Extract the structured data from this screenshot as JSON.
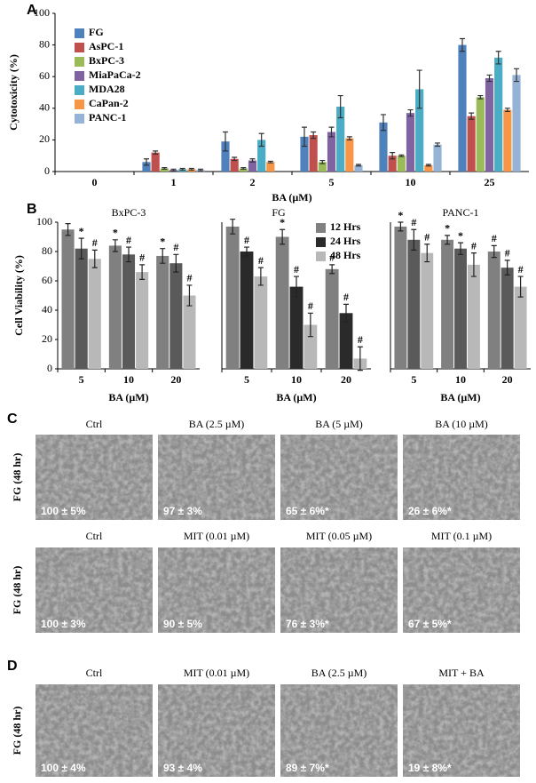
{
  "panel_labels": [
    "A",
    "B",
    "C",
    "D"
  ],
  "chart_data": [
    {
      "type": "bar",
      "categories": [
        "0",
        "1",
        "2",
        "5",
        "10",
        "25"
      ],
      "x_label": "BA (µM)",
      "y_label": "Cytotoxicity (%)",
      "ylim": [
        0,
        100
      ],
      "yticks": [
        0,
        20,
        40,
        60,
        80,
        100
      ],
      "legend": "upper-left",
      "series": [
        {
          "name": "FG",
          "color": "#4f81bd",
          "values": [
            0,
            6,
            19,
            22,
            31,
            80
          ],
          "errors": [
            0,
            2,
            6,
            6,
            5,
            4
          ]
        },
        {
          "name": "AsPC-1",
          "color": "#c0504d",
          "values": [
            0,
            12,
            8,
            23,
            10,
            35
          ],
          "errors": [
            0,
            1,
            1,
            2,
            2,
            2
          ]
        },
        {
          "name": "BxPC-3",
          "color": "#9bbb59",
          "values": [
            0,
            2,
            2,
            6,
            10,
            47
          ],
          "errors": [
            0,
            0.5,
            0.5,
            1,
            0.5,
            1
          ]
        },
        {
          "name": "MiaPaCa-2",
          "color": "#8064a2",
          "values": [
            0,
            1,
            7,
            25,
            37,
            59
          ],
          "errors": [
            0,
            0.5,
            1,
            3,
            2,
            2
          ]
        },
        {
          "name": "MDA28",
          "color": "#4bacc6",
          "values": [
            0,
            1.5,
            20,
            41,
            52,
            72
          ],
          "errors": [
            0,
            0.5,
            4,
            7,
            12,
            4
          ]
        },
        {
          "name": "CaPan-2",
          "color": "#f79646",
          "values": [
            0,
            1.5,
            6,
            21,
            4,
            39
          ],
          "errors": [
            0,
            0.5,
            0.5,
            1,
            0.5,
            1
          ]
        },
        {
          "name": "PANC-1",
          "color": "#95b3d7",
          "values": [
            0,
            1,
            0,
            4,
            17,
            61
          ],
          "errors": [
            0,
            0.5,
            0,
            0.5,
            1,
            4
          ]
        }
      ]
    },
    {
      "type": "bar",
      "title": "BxPC-3",
      "categories": [
        "5",
        "10",
        "20"
      ],
      "x_label": "BA (µM)",
      "y_label": "Cell Viability (%)",
      "ylim": [
        0,
        100
      ],
      "yticks": [
        0,
        20,
        40,
        60,
        80,
        100
      ],
      "series": [
        {
          "color": "#808080",
          "values": [
            95,
            84,
            77
          ],
          "errors": [
            4,
            4,
            5
          ],
          "significance": [
            null,
            "*",
            "*"
          ]
        },
        {
          "color": "#5a5a5a",
          "values": [
            82,
            78,
            72
          ],
          "errors": [
            7,
            5,
            6
          ],
          "significance": [
            "*",
            "#",
            "#"
          ]
        },
        {
          "color": "#b8b8b8",
          "values": [
            75,
            66,
            50
          ],
          "errors": [
            6,
            5,
            7
          ],
          "significance": [
            "#",
            "#",
            "#"
          ]
        }
      ]
    },
    {
      "type": "bar",
      "title": "FG",
      "categories": [
        "5",
        "10",
        "20"
      ],
      "x_label": "BA (µM)",
      "ylim": [
        0,
        100
      ],
      "legend": "upper-right",
      "series": [
        {
          "name": "12 Hrs",
          "color": "#808080",
          "values": [
            97,
            90,
            68
          ],
          "errors": [
            5,
            5,
            3
          ],
          "significance": [
            null,
            "*",
            "#"
          ]
        },
        {
          "name": "24 Hrs",
          "color": "#2a2a2a",
          "values": [
            80,
            56,
            38
          ],
          "errors": [
            3,
            7,
            6
          ],
          "significance": [
            "#",
            "#",
            "#"
          ]
        },
        {
          "name": "48 Hrs",
          "color": "#b8b8b8",
          "values": [
            63,
            30,
            7
          ],
          "errors": [
            6,
            8,
            8
          ],
          "significance": [
            "#",
            "#",
            "#"
          ]
        }
      ]
    },
    {
      "type": "bar",
      "title": "PANC-1",
      "categories": [
        "5",
        "10",
        "20"
      ],
      "x_label": "BA (µM)",
      "ylim": [
        0,
        100
      ],
      "series": [
        {
          "color": "#808080",
          "values": [
            97,
            88,
            80
          ],
          "errors": [
            3,
            3,
            4
          ],
          "significance": [
            "*",
            "*",
            "#"
          ]
        },
        {
          "color": "#5a5a5a",
          "values": [
            88,
            82,
            69
          ],
          "errors": [
            7,
            4,
            5
          ],
          "significance": [
            "#",
            "*",
            "#"
          ]
        },
        {
          "color": "#b8b8b8",
          "values": [
            79,
            71,
            56
          ],
          "errors": [
            6,
            8,
            7
          ],
          "significance": [
            "#",
            "#",
            "#"
          ]
        }
      ]
    }
  ],
  "micrographs": [
    {
      "label": "FG (48 hr)",
      "titles": [
        "Ctrl",
        "BA (2.5 µM)",
        "BA (5 µM)",
        "BA (10 µM)"
      ],
      "values": [
        "100 ± 5%",
        "97 ± 3%",
        "65 ± 6%*",
        "26 ± 6%*"
      ]
    },
    {
      "label": "FG (48 hr)",
      "titles": [
        "Ctrl",
        "MIT (0.01 µM)",
        "MIT (0.05 µM)",
        "MIT (0.1 µM)"
      ],
      "values": [
        "100 ± 3%",
        "90 ± 5%",
        "76 ± 3%*",
        "67 ± 5%*"
      ]
    },
    {
      "label": "FG (48 hr)",
      "titles": [
        "Ctrl",
        "MIT (0.01 µM)",
        "BA (2.5 µM)",
        "MIT + BA"
      ],
      "values": [
        "100 ± 4%",
        "93 ± 4%",
        "89 ± 7%*",
        "19 ± 8%*"
      ]
    }
  ]
}
